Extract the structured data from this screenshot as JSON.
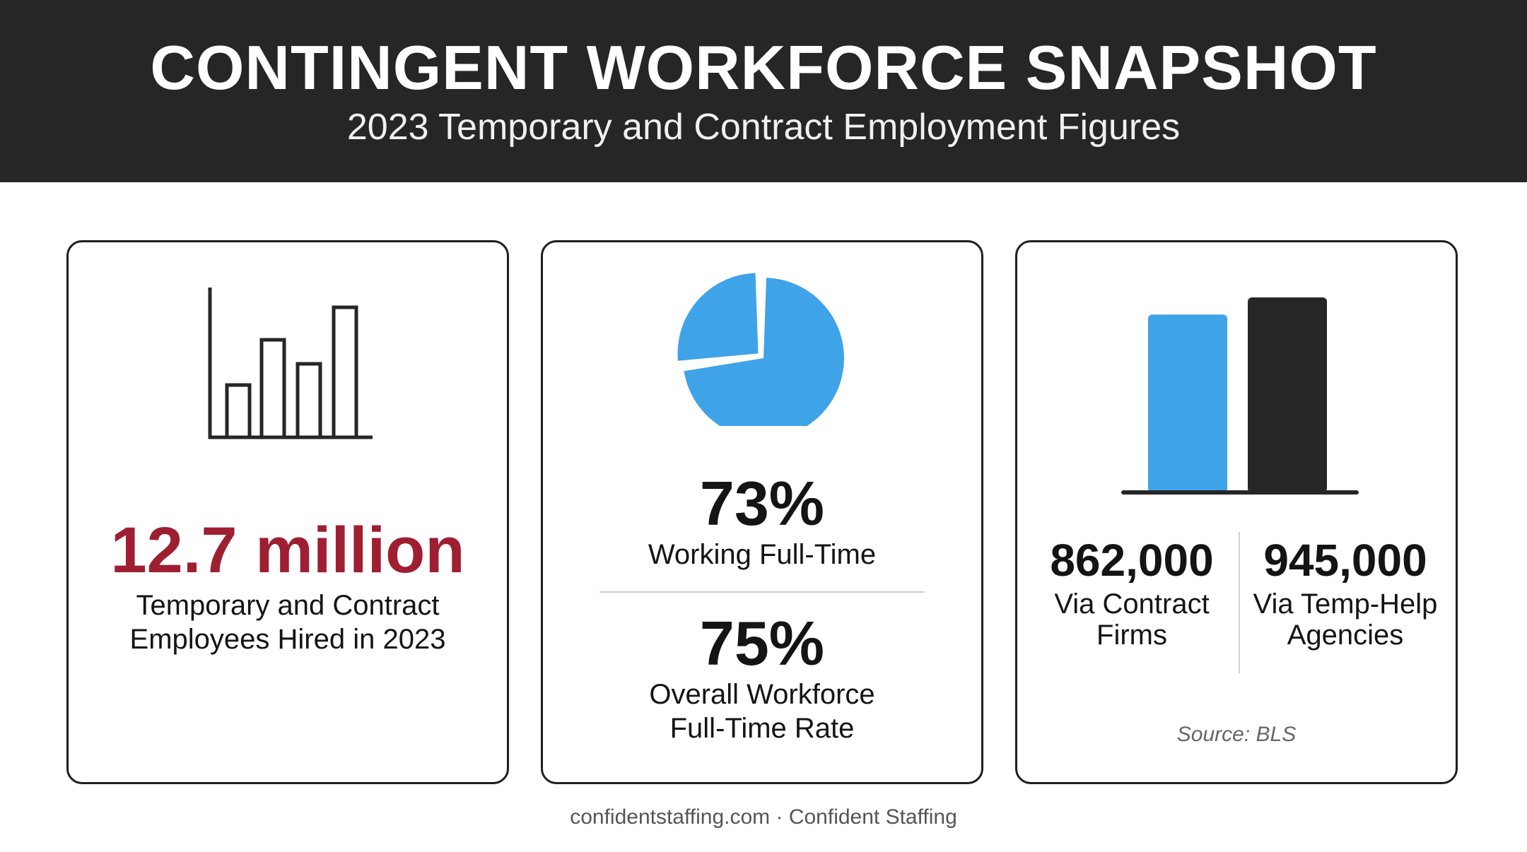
{
  "header": {
    "title": "CONTINGENT WORKFORCE SNAPSHOT",
    "subtitle": "2023 Temporary and Contract Employment Figures"
  },
  "cards": [
    {
      "icon": "bar-chart-outline-icon",
      "value": "12.7 million",
      "label_line1": "Temporary and Contract",
      "label_line2": "Employees Hired in 2023"
    },
    {
      "icon": "pie-chart-icon",
      "pie_fraction": 0.73,
      "stat1_value": "73%",
      "stat1_label": "Working Full-Time",
      "stat2_value": "75%",
      "stat2_label_line1": "Overall Workforce",
      "stat2_label_line2": "Full-Time Rate"
    },
    {
      "icon": "comparison-bars-icon",
      "left_value": "862,000",
      "left_label_line1": "Via Contract",
      "left_label_line2": "Firms",
      "right_value": "945,000",
      "right_label_line1": "Via Temp-Help",
      "right_label_line2": "Agencies",
      "source": "Source: BLS"
    }
  ],
  "chart_data": {
    "type": "bar",
    "categories": [
      "Via Contract Firms",
      "Via Temp-Help Agencies"
    ],
    "values": [
      862000,
      945000
    ],
    "colors": [
      "#3fa3e8",
      "#262626"
    ]
  },
  "colors": {
    "header_bg": "#262626",
    "accent_red": "#9e1f32",
    "accent_blue": "#3fa3e8",
    "dark": "#262626"
  },
  "footer": "confidentstaffing.com · Confident Staffing"
}
